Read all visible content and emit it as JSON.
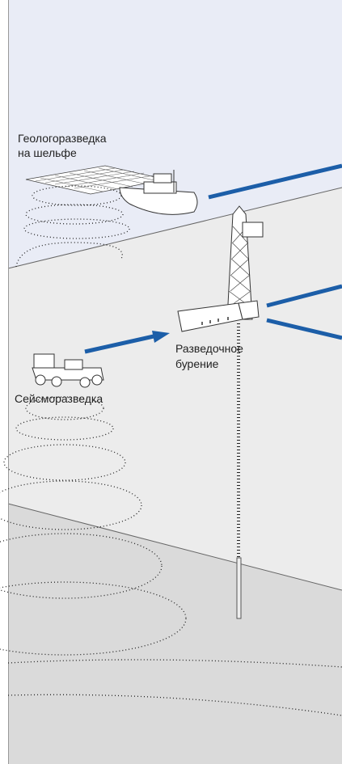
{
  "labels": {
    "offshore": [
      "Геологоразведка",
      "на шельфе"
    ],
    "drilling": [
      "Разведочное",
      "бурение"
    ],
    "seismic": "Сейсморазведка"
  }
}
